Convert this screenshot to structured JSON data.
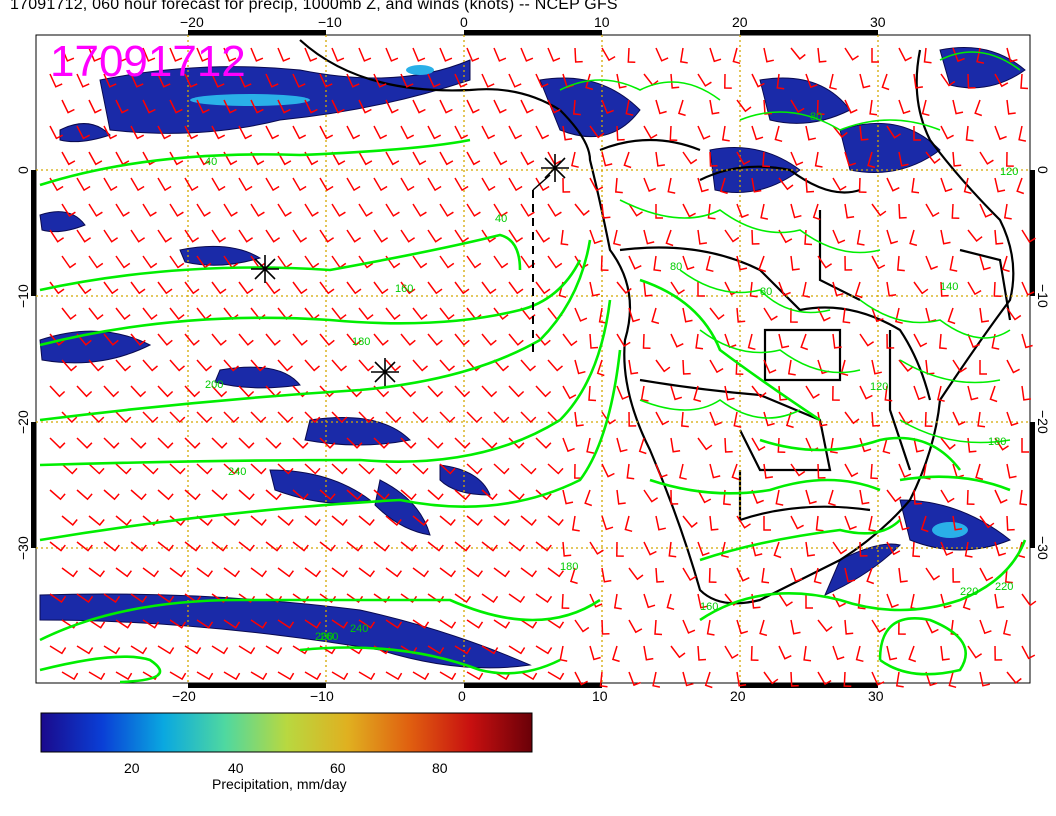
{
  "title": "17091712, 060 hour forecast for precip, 1000mb Z, and winds (knots) -- NCEP GFS",
  "stamp": "17091712",
  "axes": {
    "lon_ticks": [
      "−20",
      "−10",
      "0",
      "10",
      "20",
      "30"
    ],
    "lat_ticks": [
      "0",
      "−10",
      "−20",
      "−30"
    ]
  },
  "contour_labels": [
    "40",
    "40",
    "80",
    "160",
    "180",
    "200",
    "240",
    "240",
    "260",
    "200",
    "180",
    "160",
    "140",
    "180",
    "220",
    "220",
    "80",
    "120",
    "80",
    "120"
  ],
  "colorbar": {
    "label": "Precipitation, mm/day",
    "ticks": [
      "20",
      "40",
      "60",
      "80"
    ],
    "colors": [
      "#1a0a8c",
      "#0a3fd6",
      "#0aa8e0",
      "#4fd8a0",
      "#b8d840",
      "#e0b020",
      "#e06010",
      "#c81010",
      "#6a0008"
    ]
  },
  "colors": {
    "wind_barbs": "#ff0000",
    "contours": "#00ee00",
    "precip": "#1a2aa8",
    "gridlines": "#d4a800",
    "stamp": "#ff00ff"
  }
}
